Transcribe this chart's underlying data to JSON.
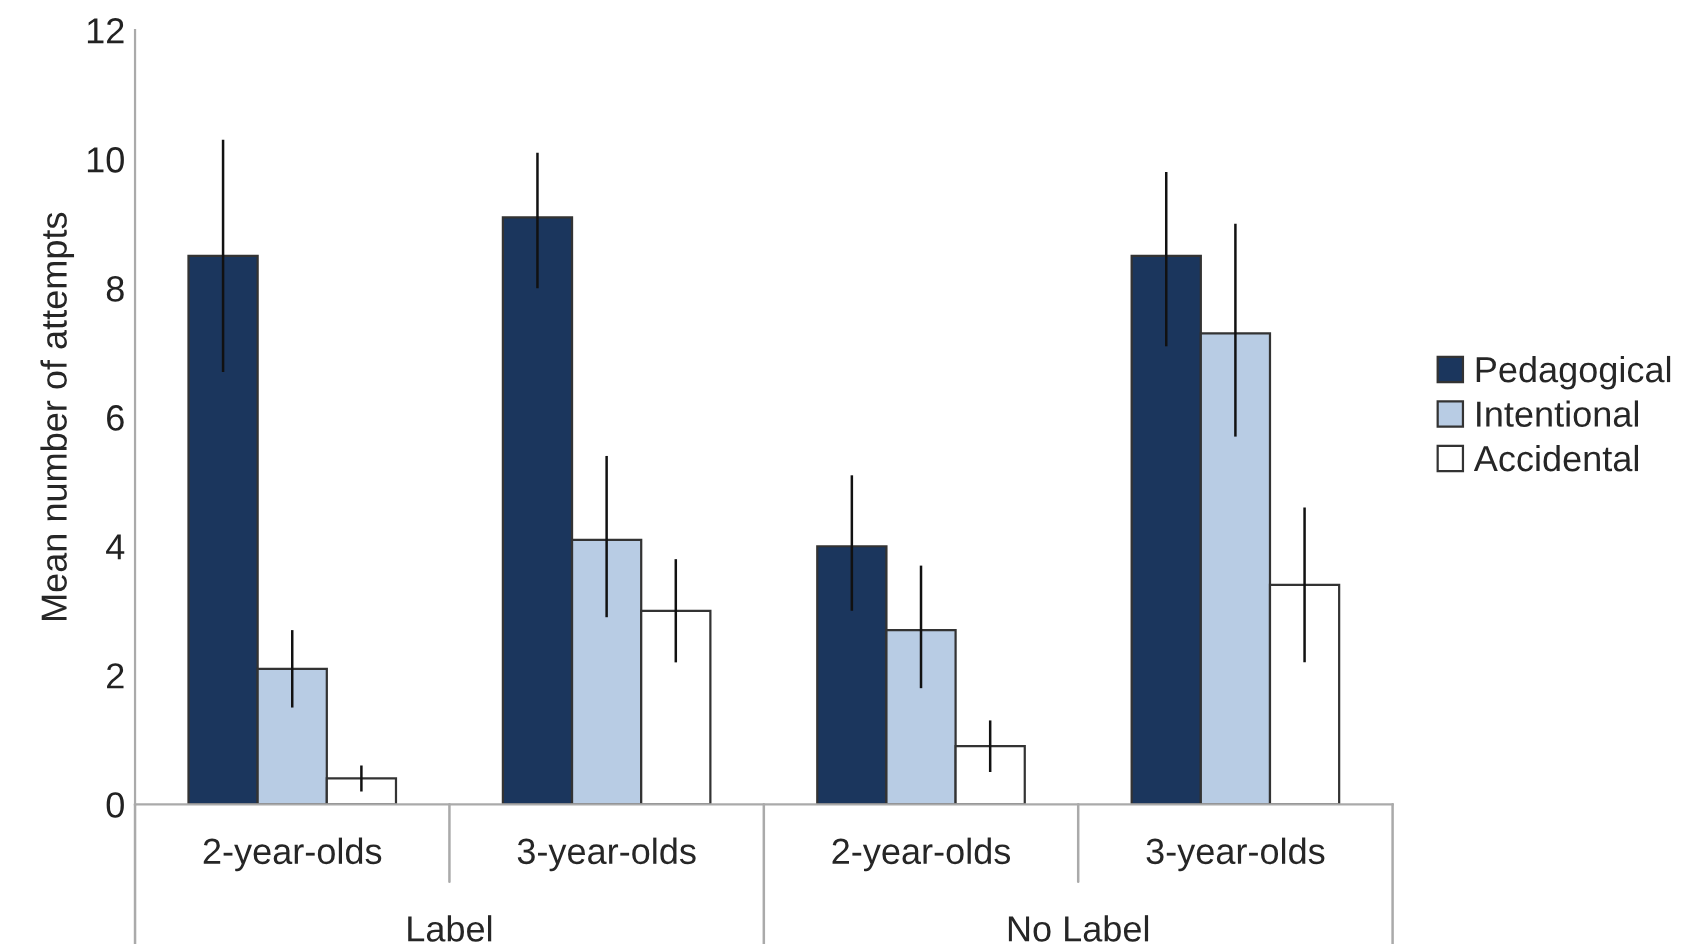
{
  "chart_data": {
    "type": "bar",
    "ylabel": "Mean number of attempts",
    "categories": [
      "2-year-olds",
      "3-year-olds",
      "2-year-olds",
      "3-year-olds"
    ],
    "series": [
      {
        "name": "Pedagogical",
        "color": "#1b365d",
        "values": [
          8.5,
          9.1,
          4.0,
          8.5
        ],
        "errors": [
          [
            6.7,
            10.3
          ],
          [
            8.0,
            10.1
          ],
          [
            3.0,
            5.1
          ],
          [
            7.1,
            9.8
          ]
        ]
      },
      {
        "name": "Intentional",
        "color": "#b8cce4",
        "values": [
          2.1,
          4.1,
          2.7,
          7.3
        ],
        "errors": [
          [
            1.5,
            2.7
          ],
          [
            2.9,
            5.4
          ],
          [
            1.8,
            3.7
          ],
          [
            5.7,
            9.0
          ]
        ]
      },
      {
        "name": "Accidental",
        "color": "#ffffff",
        "values": [
          0.4,
          3.0,
          0.9,
          3.4
        ],
        "errors": [
          [
            0.2,
            0.6
          ],
          [
            2.2,
            3.8
          ],
          [
            0.5,
            1.3
          ],
          [
            2.2,
            4.6
          ]
        ]
      }
    ],
    "annotations": [
      "Label",
      "No Label"
    ],
    "ylim": [
      0,
      12
    ],
    "yticks": [
      0,
      2,
      4,
      6,
      8,
      10,
      12
    ],
    "grid": false,
    "legend": "right"
  }
}
